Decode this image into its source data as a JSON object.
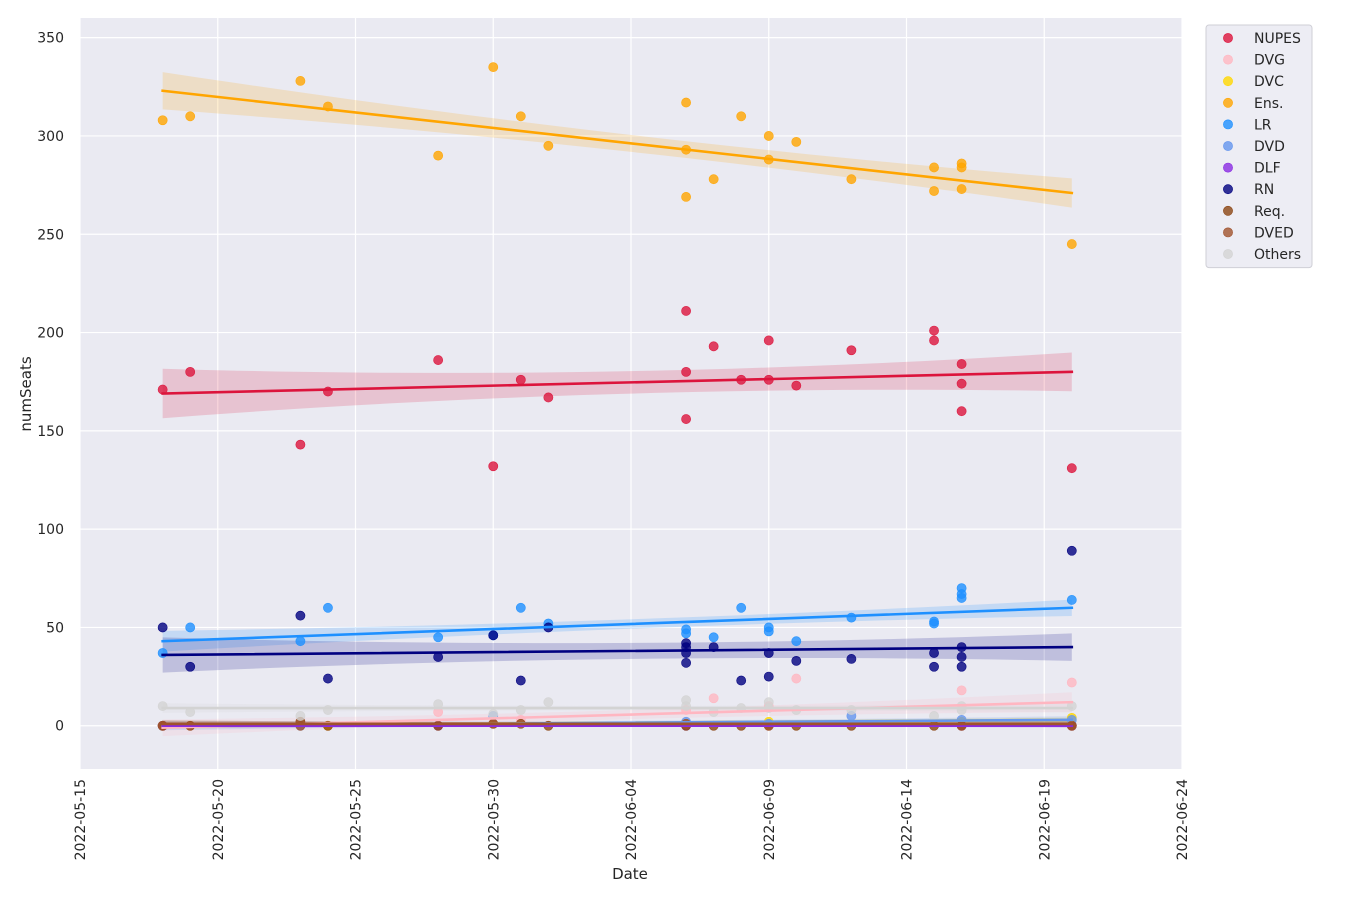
{
  "chart_data": {
    "type": "scatter",
    "title": "",
    "xlabel": "Date",
    "ylabel": "numSeats",
    "xlim": [
      "2022-05-15",
      "2022-06-24"
    ],
    "ylim": [
      -22,
      360
    ],
    "x_ticks": [
      "2022-05-15",
      "2022-05-20",
      "2022-05-25",
      "2022-05-30",
      "2022-06-04",
      "2022-06-09",
      "2022-06-14",
      "2022-06-19",
      "2022-06-24"
    ],
    "y_ticks": [
      0,
      50,
      100,
      150,
      200,
      250,
      300,
      350
    ],
    "grid": true,
    "legend_position": "top-right outside",
    "regression_lines": true,
    "series": [
      {
        "name": "NUPES",
        "color": "#dc143c",
        "x": [
          "2022-05-18",
          "2022-05-19",
          "2022-05-23",
          "2022-05-24",
          "2022-05-28",
          "2022-05-30",
          "2022-05-31",
          "2022-06-01",
          "2022-06-06",
          "2022-06-06",
          "2022-06-06",
          "2022-06-07",
          "2022-06-08",
          "2022-06-09",
          "2022-06-09",
          "2022-06-10",
          "2022-06-12",
          "2022-06-15",
          "2022-06-15",
          "2022-06-16",
          "2022-06-16",
          "2022-06-16",
          "2022-06-20"
        ],
        "y": [
          171,
          180,
          143,
          170,
          186,
          132,
          176,
          167,
          211,
          180,
          156,
          193,
          176,
          196,
          176,
          173,
          191,
          201,
          196,
          184,
          174,
          160,
          131
        ],
        "fit": [
          169,
          180
        ]
      },
      {
        "name": "DVG",
        "color": "#ffb6c1",
        "x": [
          "2022-05-18",
          "2022-05-19",
          "2022-05-23",
          "2022-05-24",
          "2022-05-28",
          "2022-05-31",
          "2022-06-06",
          "2022-06-07",
          "2022-06-09",
          "2022-06-10",
          "2022-06-16",
          "2022-06-20"
        ],
        "y": [
          0,
          0,
          2,
          0,
          7,
          3,
          8,
          14,
          10,
          24,
          18,
          22
        ],
        "fit": [
          -1,
          12
        ]
      },
      {
        "name": "DVC",
        "color": "#ffd700",
        "x": [
          "2022-05-18",
          "2022-05-24",
          "2022-06-06",
          "2022-06-09",
          "2022-06-16",
          "2022-06-20"
        ],
        "y": [
          0,
          0,
          1,
          2,
          2,
          4
        ],
        "fit": [
          0,
          3
        ]
      },
      {
        "name": "Ens.",
        "color": "#ffa500",
        "x": [
          "2022-05-18",
          "2022-05-19",
          "2022-05-23",
          "2022-05-24",
          "2022-05-28",
          "2022-05-30",
          "2022-05-31",
          "2022-06-01",
          "2022-06-06",
          "2022-06-06",
          "2022-06-06",
          "2022-06-07",
          "2022-06-08",
          "2022-06-09",
          "2022-06-09",
          "2022-06-10",
          "2022-06-12",
          "2022-06-15",
          "2022-06-15",
          "2022-06-16",
          "2022-06-16",
          "2022-06-16",
          "2022-06-20"
        ],
        "y": [
          308,
          310,
          328,
          315,
          290,
          335,
          310,
          295,
          317,
          293,
          269,
          278,
          310,
          300,
          288,
          297,
          278,
          284,
          272,
          286,
          284,
          273,
          245
        ],
        "fit": [
          323,
          271
        ]
      },
      {
        "name": "LR",
        "color": "#1e90ff",
        "x": [
          "2022-05-18",
          "2022-05-19",
          "2022-05-23",
          "2022-05-24",
          "2022-05-28",
          "2022-05-30",
          "2022-05-31",
          "2022-06-01",
          "2022-06-06",
          "2022-06-06",
          "2022-06-07",
          "2022-06-08",
          "2022-06-09",
          "2022-06-09",
          "2022-06-10",
          "2022-06-12",
          "2022-06-15",
          "2022-06-15",
          "2022-06-16",
          "2022-06-16",
          "2022-06-16",
          "2022-06-20"
        ],
        "y": [
          37,
          50,
          43,
          60,
          45,
          46,
          60,
          52,
          49,
          47,
          45,
          60,
          50,
          48,
          43,
          55,
          53,
          52,
          70,
          67,
          65,
          64
        ],
        "fit": [
          43,
          60
        ]
      },
      {
        "name": "DVD",
        "color": "#6495ed",
        "x": [
          "2022-05-18",
          "2022-05-23",
          "2022-05-30",
          "2022-06-06",
          "2022-06-09",
          "2022-06-12",
          "2022-06-16",
          "2022-06-20"
        ],
        "y": [
          0,
          0,
          5,
          2,
          1,
          5,
          3,
          3
        ],
        "fit": [
          0,
          3
        ]
      },
      {
        "name": "DLF",
        "color": "#8a2be2",
        "x": [
          "2022-05-18",
          "2022-05-28",
          "2022-06-06",
          "2022-06-16",
          "2022-06-20"
        ],
        "y": [
          0,
          0,
          0,
          0,
          0
        ],
        "fit": [
          0,
          0
        ]
      },
      {
        "name": "RN",
        "color": "#000080",
        "x": [
          "2022-05-18",
          "2022-05-19",
          "2022-05-23",
          "2022-05-24",
          "2022-05-28",
          "2022-05-30",
          "2022-05-31",
          "2022-06-01",
          "2022-06-06",
          "2022-06-06",
          "2022-06-06",
          "2022-06-06",
          "2022-06-07",
          "2022-06-08",
          "2022-06-09",
          "2022-06-09",
          "2022-06-10",
          "2022-06-12",
          "2022-06-15",
          "2022-06-15",
          "2022-06-16",
          "2022-06-16",
          "2022-06-16",
          "2022-06-20"
        ],
        "y": [
          50,
          30,
          56,
          24,
          35,
          46,
          23,
          50,
          42,
          40,
          37,
          32,
          40,
          23,
          37,
          25,
          33,
          34,
          37,
          30,
          40,
          35,
          30,
          89
        ],
        "fit": [
          36,
          40
        ]
      },
      {
        "name": "Req.",
        "color": "#8b4513",
        "x": [
          "2022-05-18",
          "2022-05-19",
          "2022-05-23",
          "2022-05-24",
          "2022-05-28",
          "2022-05-30",
          "2022-05-31",
          "2022-06-01",
          "2022-06-06",
          "2022-06-07",
          "2022-06-08",
          "2022-06-09",
          "2022-06-10",
          "2022-06-12",
          "2022-06-15",
          "2022-06-16",
          "2022-06-20"
        ],
        "y": [
          0,
          0,
          2,
          0,
          0,
          1,
          1,
          0,
          0,
          0,
          0,
          0,
          0,
          0,
          0,
          0,
          0
        ],
        "fit": [
          1,
          1
        ]
      },
      {
        "name": "DVED",
        "color": "#a0522d",
        "x": [
          "2022-05-18",
          "2022-05-23",
          "2022-05-30",
          "2022-06-06",
          "2022-06-09",
          "2022-06-16",
          "2022-06-20"
        ],
        "y": [
          0,
          0,
          1,
          1,
          0,
          0,
          0
        ],
        "fit": [
          1,
          1
        ]
      },
      {
        "name": "Others",
        "color": "#d3d3d3",
        "x": [
          "2022-05-18",
          "2022-05-19",
          "2022-05-23",
          "2022-05-24",
          "2022-05-28",
          "2022-05-30",
          "2022-05-31",
          "2022-06-01",
          "2022-06-06",
          "2022-06-06",
          "2022-06-07",
          "2022-06-08",
          "2022-06-09",
          "2022-06-09",
          "2022-06-10",
          "2022-06-12",
          "2022-06-15",
          "2022-06-16",
          "2022-06-16",
          "2022-06-20"
        ],
        "y": [
          10,
          7,
          5,
          8,
          11,
          6,
          8,
          12,
          13,
          10,
          7,
          9,
          12,
          9,
          8,
          8,
          5,
          10,
          8,
          10
        ],
        "fit": [
          9,
          9
        ]
      }
    ]
  }
}
